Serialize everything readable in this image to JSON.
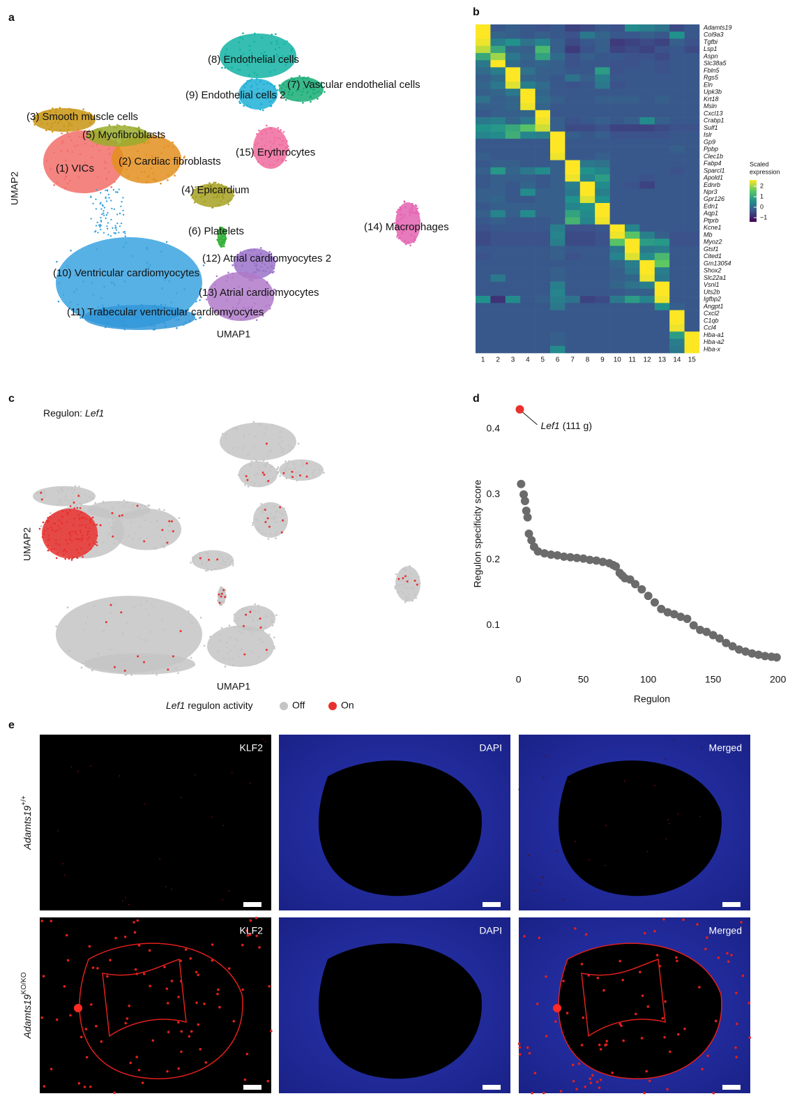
{
  "panel_labels": [
    "a",
    "b",
    "c",
    "d",
    "e"
  ],
  "chart_data": [
    {
      "type": "umap",
      "x_label": "UMAP1",
      "y_label": "UMAP2",
      "clusters": [
        {
          "name": "(1) VICs",
          "color": "#f26f6a"
        },
        {
          "name": "(2) Cardiac fibroblasts",
          "color": "#e38f1f"
        },
        {
          "name": "(3) Smooth muscle cells",
          "color": "#c99512"
        },
        {
          "name": "(4) Epicardium",
          "color": "#a6a122"
        },
        {
          "name": "(5) Myofibroblasts",
          "color": "#9aab2c"
        },
        {
          "name": "(6) Platelets",
          "color": "#35b03a"
        },
        {
          "name": "(7) Vascular endothelial cells",
          "color": "#17ad76"
        },
        {
          "name": "(8) Endothelial cells",
          "color": "#12b3a3"
        },
        {
          "name": "(9) Endothelial cells 2",
          "color": "#1fb0d6"
        },
        {
          "name": "(10) Ventricular cardiomyocytes",
          "color": "#3aa3e0"
        },
        {
          "name": "(11) Trabecular ventricular cardiomyocytes",
          "color": "#3196d8"
        },
        {
          "name": "(12) Atrial cardiomyocytes 2",
          "color": "#9a72c9"
        },
        {
          "name": "(13) Atrial cardiomyocytes",
          "color": "#b07ac9"
        },
        {
          "name": "(14) Macrophages",
          "color": "#e363b2"
        },
        {
          "name": "(15) Erythrocytes",
          "color": "#ef6b9e"
        }
      ]
    },
    {
      "type": "heatmap",
      "categories": [
        "1",
        "2",
        "3",
        "4",
        "5",
        "6",
        "7",
        "8",
        "9",
        "10",
        "11",
        "12",
        "13",
        "14",
        "15"
      ],
      "rows": [
        "Adamts19",
        "Col9a3",
        "Tgfbi",
        "Lsp1",
        "Aspn",
        "Slc38a5",
        "Fbln5",
        "Rgs5",
        "Eln",
        "Upk3b",
        "Krt18",
        "Msln",
        "Cxcl13",
        "Crabp1",
        "Sulf1",
        "Islr",
        "Gp9",
        "Ppbp",
        "Clec1b",
        "Fabp4",
        "Sparcl1",
        "Apold1",
        "Ednrb",
        "Npr3",
        "Gpr126",
        "Edn1",
        "Aqp1",
        "Ptprb",
        "Kcne1",
        "Mb",
        "Myoz2",
        "Gtsf1",
        "Cited1",
        "Gm13054",
        "Shox2",
        "Slc22a1",
        "Vsnl1",
        "Uts2b",
        "Igfbp2",
        "Angpt1",
        "Cxcl2",
        "C1qb",
        "Ccl4",
        "Hba-a1",
        "Hba-a2",
        "Hba-x"
      ],
      "values": [
        [
          2.6,
          -0.3,
          -0.2,
          -0.3,
          -0.4,
          -0.3,
          -0.6,
          -0.5,
          -0.3,
          -0.4,
          0.5,
          0.3,
          0.1,
          -0.5,
          -0.3
        ],
        [
          2.6,
          -0.1,
          -0.2,
          -0.3,
          -0.2,
          -0.3,
          -0.4,
          0.2,
          -0.1,
          -0.3,
          -0.3,
          -0.2,
          -0.3,
          0.6,
          -0.3
        ],
        [
          2.5,
          0.3,
          0.6,
          0.1,
          0.4,
          -0.2,
          -0.5,
          -0.3,
          -0.2,
          -0.7,
          -0.6,
          -0.5,
          -0.6,
          -0.2,
          -0.4
        ],
        [
          2.2,
          1.0,
          -0.1,
          -0.2,
          1.3,
          -0.2,
          -0.7,
          -0.4,
          -0.2,
          -0.6,
          -0.5,
          -0.6,
          -0.4,
          -0.3,
          -0.5
        ],
        [
          1.0,
          2.0,
          0.2,
          -0.1,
          0.9,
          0.0,
          -0.4,
          -0.2,
          -0.3,
          -0.3,
          -0.4,
          -0.4,
          -0.5,
          -0.3,
          -0.3
        ],
        [
          0.2,
          2.6,
          0.0,
          -0.2,
          -0.1,
          -0.2,
          -0.4,
          -0.3,
          -0.3,
          -0.4,
          -0.4,
          -0.3,
          -0.4,
          -0.3,
          -0.3
        ],
        [
          0.0,
          0.3,
          2.6,
          0.1,
          -0.2,
          -0.2,
          -0.3,
          -0.3,
          0.8,
          -0.4,
          -0.3,
          -0.3,
          -0.4,
          -0.3,
          -0.3
        ],
        [
          -0.2,
          0.0,
          2.6,
          -0.1,
          -0.2,
          -0.3,
          0.1,
          -0.2,
          0.3,
          -0.3,
          -0.3,
          -0.3,
          -0.3,
          -0.3,
          -0.3
        ],
        [
          -0.1,
          0.2,
          2.4,
          0.3,
          0.0,
          -0.3,
          -0.4,
          -0.3,
          0.2,
          -0.4,
          -0.3,
          -0.3,
          -0.3,
          -0.3,
          -0.3
        ],
        [
          -0.2,
          -0.1,
          0.2,
          2.6,
          -0.1,
          -0.3,
          -0.3,
          -0.3,
          -0.3,
          -0.3,
          -0.3,
          -0.3,
          -0.3,
          -0.3,
          -0.3
        ],
        [
          0.1,
          -0.2,
          -0.1,
          2.6,
          0.0,
          -0.2,
          -0.3,
          -0.3,
          -0.2,
          -0.2,
          -0.2,
          -0.3,
          -0.2,
          -0.3,
          -0.3
        ],
        [
          -0.2,
          -0.2,
          -0.1,
          2.5,
          -0.1,
          -0.3,
          -0.3,
          -0.3,
          -0.3,
          -0.3,
          -0.3,
          -0.3,
          -0.3,
          -0.3,
          -0.3
        ],
        [
          -0.3,
          -0.2,
          -0.2,
          -0.1,
          2.6,
          -0.3,
          -0.3,
          -0.3,
          -0.3,
          -0.3,
          -0.3,
          -0.3,
          -0.3,
          -0.3,
          -0.3
        ],
        [
          0.2,
          0.3,
          -0.1,
          0.2,
          2.5,
          -0.2,
          -0.4,
          -0.3,
          -0.2,
          -0.3,
          -0.2,
          0.5,
          -0.2,
          -0.3,
          -0.3
        ],
        [
          0.6,
          0.7,
          1.0,
          1.5,
          2.3,
          -0.2,
          -0.5,
          -0.5,
          -0.4,
          -0.6,
          -0.6,
          -0.6,
          -0.5,
          -0.4,
          -0.4
        ],
        [
          0.4,
          0.5,
          1.1,
          0.4,
          0.3,
          2.6,
          -0.2,
          -0.3,
          -0.2,
          -0.4,
          -0.4,
          -0.4,
          -0.4,
          -0.3,
          -0.3
        ],
        [
          -0.3,
          -0.3,
          -0.3,
          -0.3,
          -0.3,
          2.6,
          -0.3,
          -0.3,
          -0.3,
          -0.3,
          -0.3,
          -0.3,
          -0.3,
          -0.3,
          -0.3
        ],
        [
          -0.3,
          -0.3,
          -0.3,
          -0.3,
          -0.3,
          2.6,
          -0.3,
          -0.3,
          -0.3,
          -0.3,
          -0.3,
          -0.3,
          -0.3,
          -0.2,
          -0.3
        ],
        [
          -0.2,
          -0.3,
          -0.3,
          -0.3,
          -0.3,
          2.5,
          -0.3,
          -0.3,
          -0.2,
          -0.3,
          -0.3,
          -0.3,
          -0.3,
          -0.3,
          -0.3
        ],
        [
          -0.3,
          -0.2,
          -0.2,
          -0.3,
          -0.3,
          -0.2,
          2.6,
          0.2,
          0.1,
          -0.3,
          -0.3,
          -0.3,
          -0.3,
          -0.3,
          -0.3
        ],
        [
          -0.2,
          0.7,
          -0.1,
          0.2,
          0.5,
          -0.2,
          2.6,
          0.6,
          0.4,
          -0.3,
          -0.3,
          -0.3,
          -0.3,
          -0.4,
          -0.3
        ],
        [
          -0.3,
          -0.2,
          -0.2,
          -0.2,
          -0.3,
          -0.2,
          2.5,
          0.4,
          0.8,
          -0.3,
          -0.3,
          -0.4,
          -0.3,
          -0.3,
          -0.3
        ],
        [
          -0.3,
          -0.2,
          -0.3,
          -0.1,
          -0.3,
          -0.2,
          0.3,
          2.6,
          0.5,
          -0.3,
          -0.4,
          -0.6,
          -0.3,
          -0.3,
          -0.3
        ],
        [
          -0.2,
          -0.2,
          -0.3,
          0.5,
          -0.2,
          -0.2,
          0.2,
          2.6,
          0.3,
          -0.3,
          -0.3,
          -0.3,
          -0.3,
          -0.3,
          -0.3
        ],
        [
          -0.2,
          -0.1,
          -0.3,
          -0.3,
          -0.2,
          -0.2,
          0.6,
          2.4,
          0.6,
          -0.3,
          -0.3,
          -0.3,
          -0.3,
          -0.3,
          -0.3
        ],
        [
          -0.3,
          -0.2,
          -0.2,
          -0.2,
          -0.2,
          -0.2,
          0.4,
          0.6,
          2.6,
          -0.3,
          -0.3,
          -0.3,
          -0.3,
          -0.3,
          -0.3
        ],
        [
          -0.2,
          0.4,
          -0.2,
          0.5,
          -0.2,
          -0.2,
          0.9,
          0.5,
          2.6,
          -0.3,
          -0.3,
          -0.3,
          -0.3,
          -0.3,
          -0.3
        ],
        [
          -0.3,
          -0.2,
          -0.3,
          -0.3,
          -0.3,
          -0.2,
          1.2,
          0.4,
          2.5,
          -0.3,
          -0.3,
          -0.3,
          -0.3,
          -0.3,
          -0.3
        ],
        [
          -0.4,
          -0.3,
          -0.3,
          -0.3,
          -0.3,
          0.3,
          -0.4,
          -0.4,
          -0.3,
          2.6,
          0.4,
          -0.3,
          -0.3,
          -0.3,
          -0.3
        ],
        [
          -0.5,
          -0.4,
          -0.4,
          -0.4,
          -0.4,
          0.4,
          -0.5,
          -0.5,
          -0.4,
          2.5,
          1.5,
          0.3,
          -0.2,
          -0.4,
          -0.4
        ],
        [
          -0.5,
          -0.4,
          -0.4,
          -0.4,
          -0.4,
          0.3,
          -0.5,
          -0.5,
          -0.4,
          1.5,
          2.6,
          0.8,
          0.7,
          -0.4,
          -0.4
        ],
        [
          -0.3,
          -0.3,
          -0.3,
          -0.3,
          -0.3,
          -0.2,
          -0.3,
          -0.3,
          -0.3,
          0.2,
          2.6,
          0.2,
          0.3,
          -0.3,
          -0.3
        ],
        [
          -0.4,
          -0.3,
          -0.3,
          -0.3,
          -0.3,
          -0.2,
          -0.4,
          -0.3,
          -0.3,
          0.4,
          2.4,
          0.5,
          1.3,
          -0.3,
          -0.3
        ],
        [
          -0.3,
          -0.3,
          -0.3,
          -0.3,
          -0.3,
          -0.3,
          -0.3,
          -0.3,
          -0.3,
          -0.1,
          0.3,
          2.6,
          1.6,
          -0.3,
          -0.3
        ],
        [
          -0.3,
          -0.3,
          -0.3,
          -0.3,
          -0.3,
          -0.2,
          -0.3,
          -0.3,
          -0.3,
          -0.2,
          0.2,
          2.6,
          0.3,
          -0.3,
          -0.3
        ],
        [
          -0.3,
          0.2,
          -0.3,
          -0.3,
          -0.3,
          -0.2,
          -0.3,
          -0.3,
          -0.3,
          -0.2,
          -0.1,
          2.5,
          0.2,
          -0.3,
          -0.3
        ],
        [
          -0.3,
          -0.3,
          -0.3,
          -0.3,
          -0.3,
          0.3,
          -0.3,
          -0.3,
          -0.3,
          -0.1,
          0.1,
          0.3,
          2.6,
          -0.3,
          -0.3
        ],
        [
          -0.3,
          -0.3,
          -0.3,
          -0.3,
          -0.3,
          0.4,
          -0.3,
          -0.3,
          -0.3,
          -0.3,
          -0.2,
          -0.2,
          2.6,
          -0.3,
          -0.3
        ],
        [
          0.6,
          -0.8,
          0.5,
          -0.3,
          -0.2,
          0.3,
          0.1,
          -0.6,
          -0.5,
          0.2,
          0.8,
          0.4,
          2.5,
          -0.3,
          -0.3
        ],
        [
          -0.3,
          -0.3,
          -0.3,
          -0.3,
          -0.3,
          0.2,
          -0.3,
          -0.3,
          -0.3,
          -0.3,
          -0.3,
          -0.3,
          0.6,
          -0.2,
          -0.3
        ],
        [
          -0.3,
          -0.3,
          -0.3,
          -0.3,
          -0.3,
          -0.3,
          -0.3,
          -0.3,
          -0.3,
          -0.3,
          -0.3,
          -0.3,
          -0.3,
          2.6,
          -0.3
        ],
        [
          -0.3,
          -0.3,
          -0.3,
          -0.3,
          -0.3,
          -0.3,
          -0.3,
          -0.3,
          -0.3,
          -0.3,
          -0.3,
          -0.3,
          -0.3,
          2.6,
          -0.3
        ],
        [
          -0.3,
          -0.3,
          -0.3,
          -0.3,
          -0.3,
          -0.3,
          -0.3,
          -0.3,
          -0.3,
          -0.3,
          -0.3,
          -0.3,
          -0.3,
          2.5,
          -0.3
        ],
        [
          -0.3,
          -0.3,
          -0.3,
          -0.3,
          -0.3,
          -0.2,
          -0.3,
          -0.3,
          -0.3,
          -0.3,
          -0.3,
          -0.3,
          -0.3,
          0.8,
          2.6
        ],
        [
          -0.3,
          -0.3,
          -0.3,
          -0.3,
          -0.3,
          -0.2,
          -0.3,
          -0.3,
          -0.3,
          -0.3,
          -0.3,
          -0.3,
          -0.3,
          0.3,
          2.6
        ],
        [
          -0.3,
          -0.3,
          -0.3,
          -0.3,
          -0.3,
          0.5,
          -0.3,
          -0.3,
          -0.3,
          -0.3,
          -0.3,
          -0.3,
          -0.3,
          0.2,
          2.6
        ]
      ],
      "colorbar_title": [
        "Scaled",
        "expression"
      ],
      "clim": [
        -1.4,
        2.6
      ],
      "cticks": [
        2,
        1,
        0,
        {
          "value": -1,
          "label": "−1"
        }
      ]
    },
    {
      "type": "umap_activity",
      "title_prefix": "Regulon:",
      "title_gene": "Lef1",
      "x_label": "UMAP1",
      "y_label": "UMAP2",
      "legend_gene": "Lef1",
      "legend_title": "regulon activity",
      "series": [
        {
          "name": "Off",
          "color": "#c4c4c4"
        },
        {
          "name": "On",
          "color": "#e8312f"
        }
      ]
    },
    {
      "type": "scatter",
      "x_label": "Regulon",
      "y_label": "Regulon specificity score",
      "color": "#6b6b6b",
      "x": [
        2,
        4,
        5,
        6,
        7,
        8,
        10,
        12,
        15,
        20,
        25,
        30,
        35,
        40,
        45,
        50,
        55,
        60,
        65,
        70,
        73,
        75,
        78,
        80,
        82,
        86,
        90,
        95,
        100,
        105,
        110,
        115,
        120,
        125,
        130,
        135,
        140,
        145,
        150,
        155,
        160,
        165,
        170,
        175,
        180,
        185,
        190,
        195,
        199
      ],
      "values": [
        0.316,
        0.3,
        0.29,
        0.275,
        0.265,
        0.24,
        0.23,
        0.22,
        0.213,
        0.21,
        0.208,
        0.207,
        0.205,
        0.204,
        0.203,
        0.202,
        0.2,
        0.199,
        0.197,
        0.195,
        0.192,
        0.19,
        0.18,
        0.176,
        0.172,
        0.17,
        0.163,
        0.155,
        0.145,
        0.135,
        0.125,
        0.12,
        0.117,
        0.113,
        0.11,
        0.1,
        0.093,
        0.09,
        0.085,
        0.08,
        0.073,
        0.068,
        0.063,
        0.06,
        0.057,
        0.055,
        0.053,
        0.052,
        0.051
      ],
      "highlight": {
        "x": 1,
        "value": 0.43,
        "color": "#e8312f",
        "label_gene": "Lef1",
        "label_rest": "(111 g)"
      },
      "xlim": [
        -10,
        205
      ],
      "ylim": [
        0.03,
        0.45
      ],
      "xticks": [
        0,
        50,
        100,
        150,
        200
      ],
      "yticks": [
        0.1,
        0.2,
        0.3,
        0.4
      ]
    }
  ],
  "micrographs": {
    "columns": [
      "KLF2",
      "DAPI",
      "Merged"
    ],
    "rows": [
      {
        "gene": "Adamts19",
        "genotype": "+/+"
      },
      {
        "gene": "Adamts19",
        "genotype": "KO/KO"
      }
    ]
  }
}
